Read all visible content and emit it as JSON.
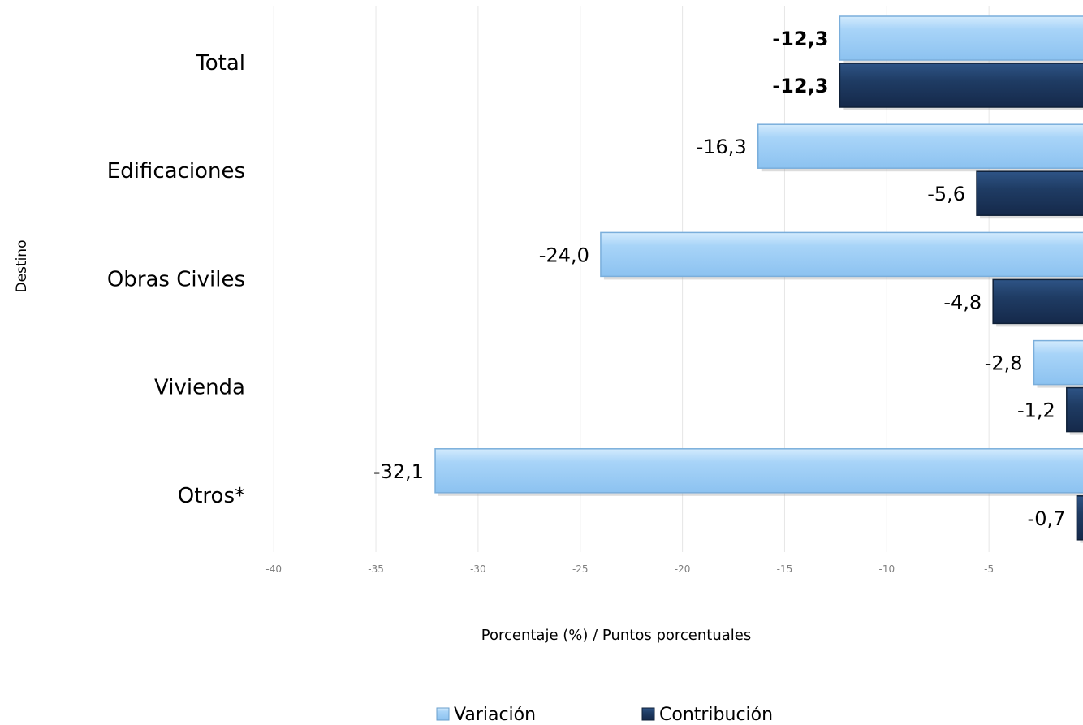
{
  "chart_data": {
    "type": "bar",
    "orientation": "horizontal",
    "categories": [
      "Total",
      "Edificaciones",
      "Obras Civiles",
      "Vivienda",
      "Otros*"
    ],
    "series": [
      {
        "name": "Variación",
        "values": [
          -12.3,
          -16.3,
          -24.0,
          -2.8,
          -32.1
        ],
        "labels": [
          "-12,3",
          "-16,3",
          "-24,0",
          "-2,8",
          "-32,1"
        ],
        "color": "#a8d4f8"
      },
      {
        "name": "Contribución",
        "values": [
          -12.3,
          -5.6,
          -4.8,
          -1.2,
          -0.7
        ],
        "labels": [
          "-12,3",
          "-5,6",
          "-4,8",
          "-1,2",
          "-0,7"
        ],
        "color": "#1f3c64"
      }
    ],
    "xlabel": "Porcentaje (%) / Puntos porcentuales",
    "ylabel": "Destino",
    "xlim": [
      -40,
      0
    ],
    "xticks": [
      -40,
      -35,
      -30,
      -25,
      -20,
      -15,
      -10,
      -5
    ],
    "xtick_labels": [
      "-40",
      "-35",
      "-30",
      "-25",
      "-20",
      "-15",
      "-10",
      "-5"
    ],
    "grid": true,
    "legend": "bottom",
    "bold_labels_category": "Total"
  }
}
